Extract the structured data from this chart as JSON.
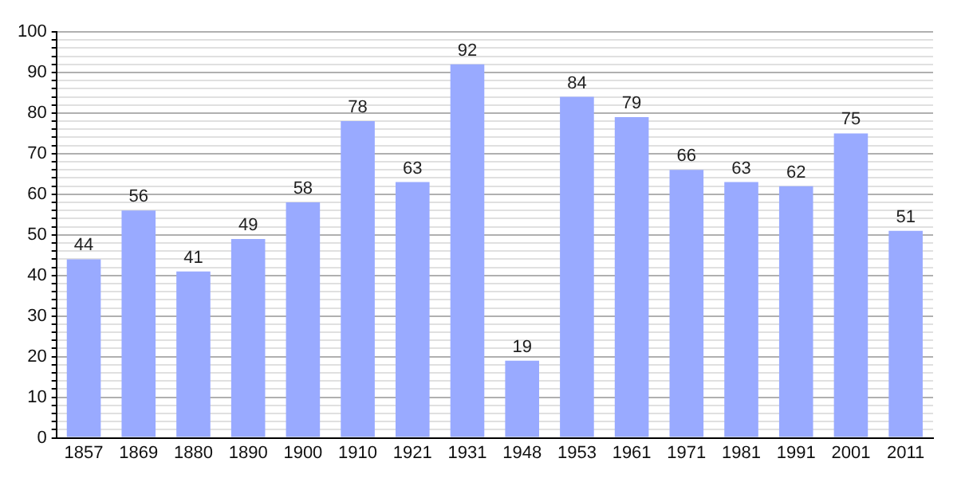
{
  "chart_data": {
    "type": "bar",
    "categories": [
      "1857",
      "1869",
      "1880",
      "1890",
      "1900",
      "1910",
      "1921",
      "1931",
      "1948",
      "1953",
      "1961",
      "1971",
      "1981",
      "1991",
      "2001",
      "2011"
    ],
    "values": [
      44,
      56,
      41,
      49,
      58,
      78,
      63,
      92,
      19,
      84,
      79,
      66,
      63,
      62,
      75,
      51
    ],
    "color": "#99aaff",
    "ylim": [
      0,
      100
    ],
    "yticks": [
      0,
      {
        "value": 2,
        "label": null
      },
      {
        "value": 4,
        "label": null
      },
      {
        "value": 6,
        "label": null
      },
      {
        "value": 8,
        "label": null
      },
      10,
      {
        "value": 12,
        "label": null
      },
      {
        "value": 14,
        "label": null
      },
      {
        "value": 16,
        "label": null
      },
      {
        "value": 18,
        "label": null
      },
      20,
      {
        "value": 22,
        "label": null
      },
      {
        "value": 24,
        "label": null
      },
      {
        "value": 26,
        "label": null
      },
      {
        "value": 28,
        "label": null
      },
      30,
      {
        "value": 32,
        "label": null
      },
      {
        "value": 34,
        "label": null
      },
      {
        "value": 36,
        "label": null
      },
      {
        "value": 38,
        "label": null
      },
      40,
      {
        "value": 42,
        "label": null
      },
      {
        "value": 44,
        "label": null
      },
      {
        "value": 46,
        "label": null
      },
      {
        "value": 48,
        "label": null
      },
      50,
      {
        "value": 52,
        "label": null
      },
      {
        "value": 54,
        "label": null
      },
      {
        "value": 56,
        "label": null
      },
      {
        "value": 58,
        "label": null
      },
      60,
      {
        "value": 62,
        "label": null
      },
      {
        "value": 64,
        "label": null
      },
      {
        "value": 66,
        "label": null
      },
      {
        "value": 68,
        "label": null
      },
      70,
      {
        "value": 72,
        "label": null
      },
      {
        "value": 74,
        "label": null
      },
      {
        "value": 76,
        "label": null
      },
      {
        "value": 78,
        "label": null
      },
      80,
      {
        "value": 82,
        "label": null
      },
      {
        "value": 84,
        "label": null
      },
      {
        "value": 86,
        "label": null
      },
      {
        "value": 88,
        "label": null
      },
      90,
      {
        "value": 92,
        "label": null
      },
      {
        "value": 94,
        "label": null
      },
      {
        "value": 96,
        "label": null
      },
      {
        "value": 98,
        "label": null
      },
      100
    ],
    "grid": true,
    "data_labels": true
  }
}
